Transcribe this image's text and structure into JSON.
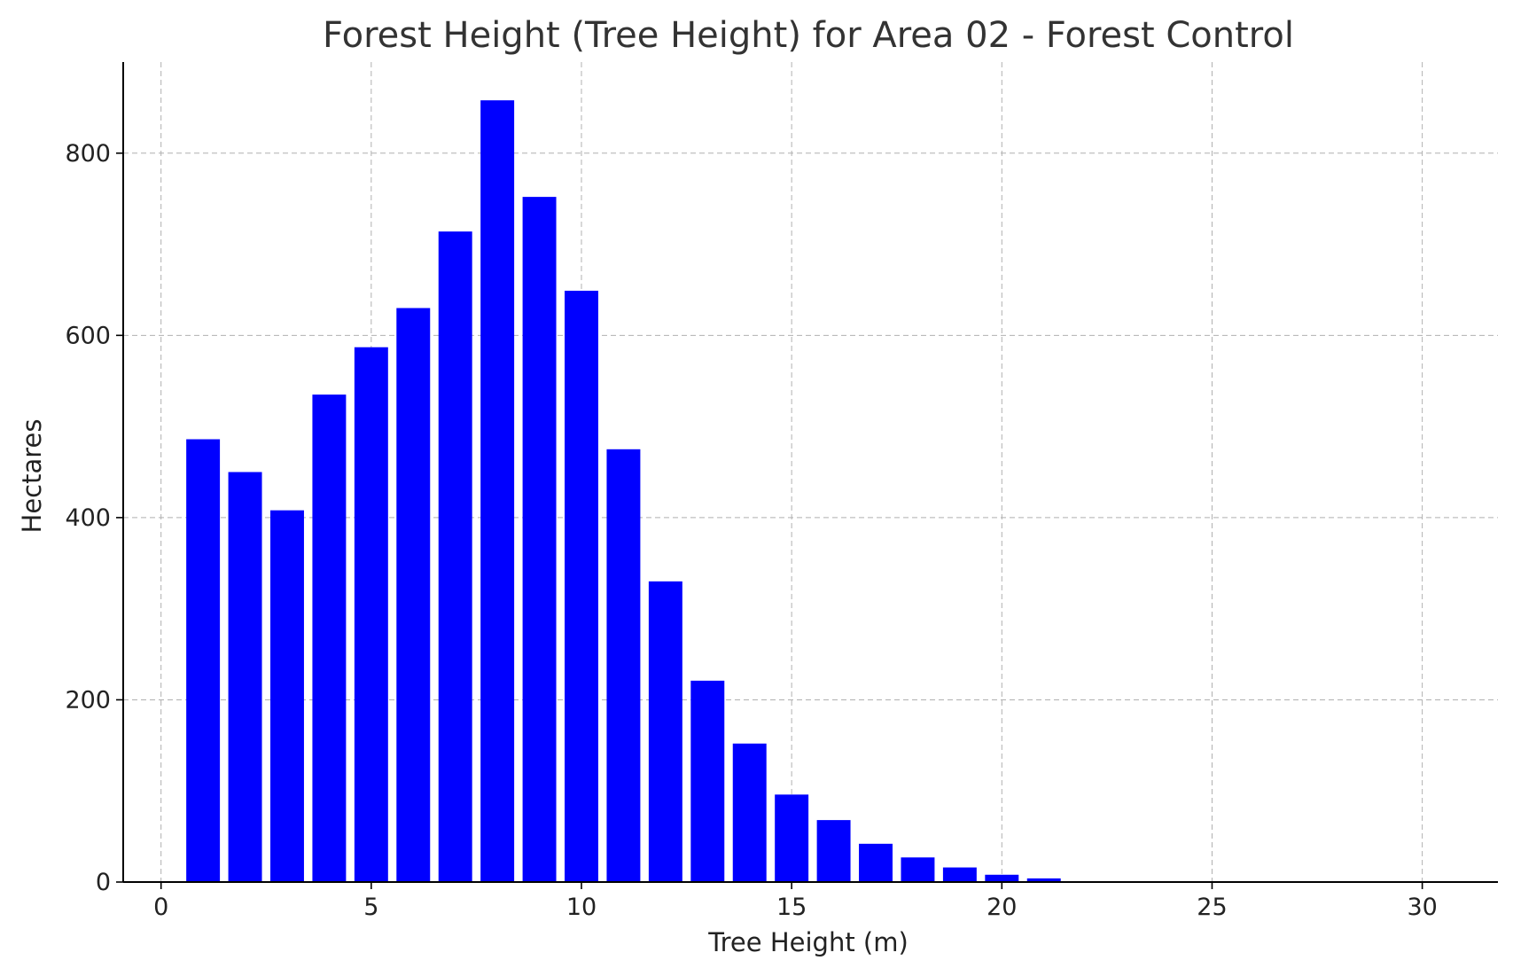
{
  "chart_data": {
    "type": "bar",
    "title": "Forest Height (Tree Height) for Area 02 - Forest Control",
    "xlabel": "Tree Height (m)",
    "ylabel": "Hectares",
    "xlim": [
      -0.9,
      31.8
    ],
    "ylim": [
      0,
      900
    ],
    "x_ticks": [
      0,
      5,
      10,
      15,
      20,
      25,
      30
    ],
    "x_tick_labels": [
      "0",
      "5",
      "10",
      "15",
      "20",
      "25",
      "30"
    ],
    "y_ticks": [
      0,
      200,
      400,
      600,
      800
    ],
    "y_tick_labels": [
      "0",
      "200",
      "400",
      "600",
      "800"
    ],
    "grid": true,
    "bar_width": 0.8,
    "bar_color": "#0000ff",
    "x": [
      1,
      2,
      3,
      4,
      5,
      6,
      7,
      8,
      9,
      10,
      11,
      12,
      13,
      14,
      15,
      16,
      17,
      18,
      19,
      20,
      21,
      22,
      23,
      24,
      25,
      26,
      27,
      28,
      29,
      30
    ],
    "values": [
      486,
      450,
      408,
      535,
      587,
      630,
      714,
      858,
      752,
      649,
      475,
      330,
      221,
      152,
      96,
      68,
      42,
      27,
      16,
      8,
      4,
      0,
      0,
      0,
      0,
      0,
      0,
      0,
      0,
      0
    ]
  }
}
